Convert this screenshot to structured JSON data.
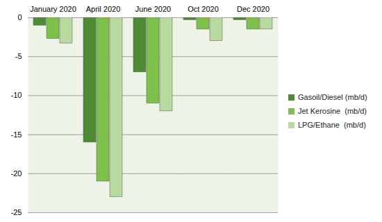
{
  "chart_data": {
    "type": "bar",
    "categories": [
      "January 2020",
      "April 2020",
      "June 2020",
      "Oct 2020",
      "Dec 2020"
    ],
    "series": [
      {
        "name": "Gasoil/Diesel (mb/d)",
        "color": "#4e8b34",
        "values": [
          -1,
          -16,
          -7,
          -0.3,
          -0.3
        ]
      },
      {
        "name": "Jet Kerosine  (mb/d)",
        "color": "#7dc04b",
        "values": [
          -2.7,
          -21,
          -11,
          -1.5,
          -1.5
        ]
      },
      {
        "name": "LPG/Ethane  (mb/d)",
        "color": "#b8da9f",
        "values": [
          -3.3,
          -23,
          -12,
          -3,
          -1.5
        ]
      }
    ],
    "ylim": [
      -25,
      0
    ],
    "yticks": [
      -25,
      -20,
      -15,
      -10,
      -5,
      0
    ],
    "grid": true,
    "legend": "right"
  }
}
